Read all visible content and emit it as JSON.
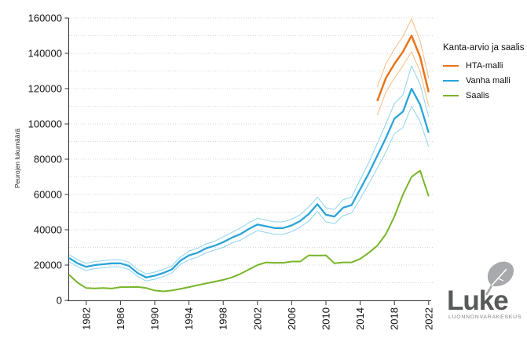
{
  "chart_data": {
    "type": "line",
    "title": "",
    "xlabel": "",
    "ylabel": "Peurojen lukumäärä",
    "ylim": [
      0,
      160000
    ],
    "yticks": [
      0,
      20000,
      40000,
      60000,
      80000,
      100000,
      120000,
      140000,
      160000
    ],
    "grid_step": 10000,
    "grid_on": true,
    "xlim": [
      1980,
      2022
    ],
    "xticks": [
      1982,
      1986,
      1990,
      1994,
      1998,
      2002,
      2006,
      2010,
      2014,
      2018,
      2022
    ],
    "legend": {
      "title": "Kanta-arvio ja saalis",
      "position": "right"
    },
    "colors": {
      "grid": "#d6d6d6",
      "axis": "#333333",
      "background": "#ffffff"
    },
    "series": [
      {
        "name": "HTA-malli",
        "color": "#e87419",
        "ci_color": "#f7bd7f",
        "start_year": 2016,
        "values": [
          113000,
          126000,
          134000,
          141000,
          150000,
          138000,
          118000
        ],
        "upper": [
          121000,
          134000,
          142500,
          149500,
          159500,
          147000,
          126000
        ],
        "lower": [
          105000,
          118000,
          126000,
          133000,
          141000,
          129500,
          110000
        ]
      },
      {
        "name": "Vanha malli",
        "color": "#2aa4d8",
        "ci_color": "#8ed4ee",
        "start_year": 1980,
        "values": [
          24000,
          21000,
          19000,
          20000,
          20500,
          21000,
          21000,
          19500,
          15500,
          13000,
          14000,
          15500,
          17500,
          22500,
          25500,
          27000,
          29500,
          31000,
          33000,
          35500,
          37500,
          40500,
          43000,
          42000,
          41000,
          41000,
          42500,
          45000,
          49000,
          54500,
          48500,
          47500,
          52500,
          54000,
          63000,
          72000,
          82000,
          92000,
          103000,
          107000,
          120000,
          111000,
          95000
        ],
        "upper": [
          26000,
          23000,
          21000,
          22000,
          22500,
          23000,
          23000,
          21500,
          17500,
          15000,
          16000,
          17500,
          19500,
          24500,
          28000,
          29500,
          32000,
          33500,
          36000,
          38500,
          41000,
          44000,
          46500,
          45500,
          44500,
          44500,
          46000,
          48500,
          53000,
          58500,
          52500,
          51500,
          57000,
          58500,
          68500,
          78000,
          89000,
          100000,
          111500,
          116500,
          133000,
          122500,
          104000
        ],
        "lower": [
          22000,
          19000,
          17000,
          18000,
          18500,
          19000,
          19000,
          17500,
          13500,
          11000,
          12000,
          13500,
          15500,
          20500,
          23000,
          24500,
          27000,
          28500,
          30000,
          32500,
          34000,
          37000,
          39500,
          38500,
          37500,
          37500,
          39000,
          41500,
          45000,
          50500,
          44500,
          43500,
          48000,
          49500,
          57500,
          66000,
          75000,
          84000,
          94500,
          98000,
          110000,
          101500,
          87000
        ]
      },
      {
        "name": "Saalis",
        "color": "#77b629",
        "start_year": 1980,
        "values": [
          14500,
          10000,
          7000,
          6800,
          7000,
          6700,
          7500,
          7500,
          7600,
          7000,
          5600,
          5100,
          5600,
          6500,
          7500,
          8600,
          9600,
          10600,
          11600,
          13000,
          15000,
          17500,
          20000,
          21500,
          21300,
          21300,
          22000,
          22000,
          25500,
          25400,
          25500,
          21000,
          21500,
          21500,
          23500,
          27000,
          31000,
          37500,
          47500,
          60000,
          70000,
          73500,
          59000
        ]
      }
    ]
  },
  "branding": {
    "logo_text": "Luke",
    "logo_subtitle": "LUONNONVARAKESKUS"
  }
}
